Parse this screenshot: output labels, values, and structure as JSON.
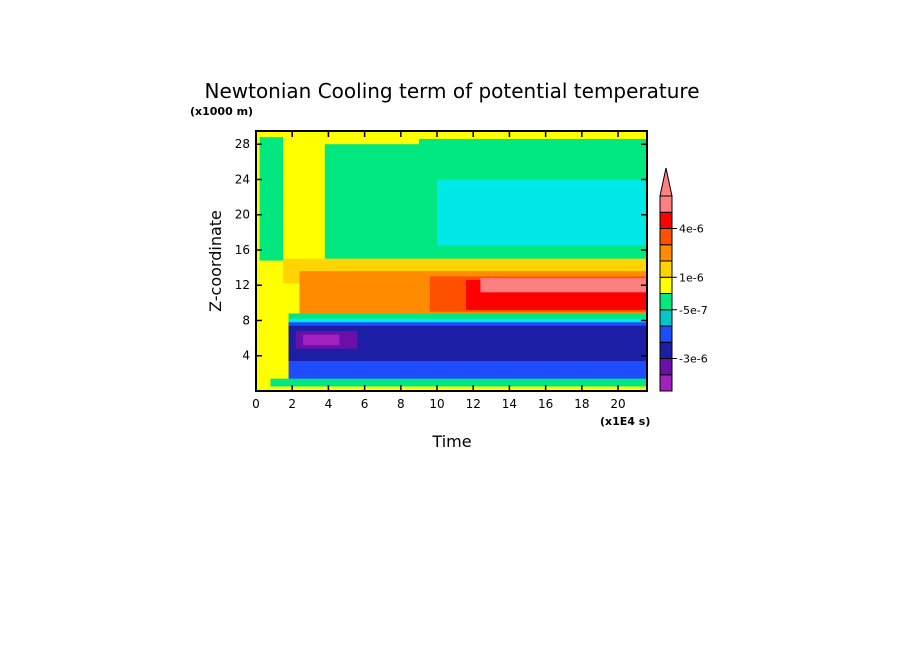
{
  "chart_data": {
    "type": "heatmap",
    "title": "Newtonian Cooling term of potential temperature",
    "xlabel": "Time",
    "ylabel": "Z-coordinate",
    "x_unit": "(x1E4 s)",
    "y_unit": "(x1000 m)",
    "xlim": [
      0,
      21.6
    ],
    "ylim": [
      0,
      29.5
    ],
    "x_ticks": [
      0,
      2,
      4,
      6,
      8,
      10,
      12,
      14,
      16,
      18,
      20
    ],
    "y_ticks": [
      4,
      8,
      12,
      16,
      20,
      24,
      28
    ],
    "x_tick_labels": [
      "0",
      "2",
      "4",
      "6",
      "8",
      "10",
      "12",
      "14",
      "16",
      "18",
      "20"
    ],
    "y_tick_labels": [
      "4",
      "8",
      "12",
      "16",
      "20",
      "24",
      "28"
    ],
    "colorbar": {
      "colors": [
        "#a020c0",
        "#6a0fa8",
        "#1c1fa6",
        "#1e4dff",
        "#00c8c8",
        "#00e87f",
        "#ffff00",
        "#ffd400",
        "#ff8c00",
        "#ff5000",
        "#ff0000",
        "#ff8080"
      ],
      "labels": [
        {
          "text": "-3e-6",
          "level": 2
        },
        {
          "text": "-5e-7",
          "level": 5
        },
        {
          "text": "1e-6",
          "level": 7
        },
        {
          "text": "4e-6",
          "level": 10
        }
      ],
      "extend": "max"
    },
    "regions": [
      {
        "color": "#ffff00",
        "x": [
          0,
          21.6
        ],
        "y": [
          0,
          29.5
        ]
      },
      {
        "color": "#00e87f",
        "x": [
          0.2,
          1.5
        ],
        "y": [
          14.8,
          28.8
        ]
      },
      {
        "color": "#00e87f",
        "x": [
          3.8,
          21.6
        ],
        "y": [
          15,
          28
        ]
      },
      {
        "color": "#00e87f",
        "x": [
          9,
          21.6
        ],
        "y": [
          26.5,
          28.6
        ]
      },
      {
        "color": "#00e8e8",
        "x": [
          10,
          21.6
        ],
        "y": [
          16.5,
          24
        ]
      },
      {
        "color": "#00e8e8",
        "x": [
          13,
          21.6
        ],
        "y": [
          18.8,
          21.8
        ]
      },
      {
        "color": "#ffd400",
        "x": [
          1.5,
          21.6
        ],
        "y": [
          12.2,
          15
        ]
      },
      {
        "color": "#ff8c00",
        "x": [
          2.4,
          21.6
        ],
        "y": [
          8.8,
          13.6
        ]
      },
      {
        "color": "#ff5000",
        "x": [
          9.6,
          21.6
        ],
        "y": [
          9,
          13
        ]
      },
      {
        "color": "#ff0000",
        "x": [
          11.6,
          21.6
        ],
        "y": [
          9.2,
          12.6
        ]
      },
      {
        "color": "#ff8080",
        "x": [
          12.4,
          21.6
        ],
        "y": [
          11.2,
          12.8
        ]
      },
      {
        "color": "#00e87f",
        "x": [
          1.8,
          21.6
        ],
        "y": [
          7,
          8.8
        ]
      },
      {
        "color": "#00e8e8",
        "x": [
          1.8,
          21.6
        ],
        "y": [
          6.6,
          8.2
        ]
      },
      {
        "color": "#1e4dff",
        "x": [
          1.8,
          21.6
        ],
        "y": [
          1,
          7.8
        ]
      },
      {
        "color": "#1c1fa6",
        "x": [
          1.8,
          21.6
        ],
        "y": [
          3.4,
          7.4
        ]
      },
      {
        "color": "#6a0fa8",
        "x": [
          2.2,
          5.6
        ],
        "y": [
          4.8,
          6.8
        ]
      },
      {
        "color": "#a020c0",
        "x": [
          2.6,
          4.6
        ],
        "y": [
          5.2,
          6.4
        ]
      },
      {
        "color": "#00e87f",
        "x": [
          0.8,
          21.6
        ],
        "y": [
          0.5,
          1.4
        ]
      },
      {
        "color": "#ffff00",
        "x": [
          0,
          21.6
        ],
        "y": [
          0,
          0.5
        ]
      }
    ]
  }
}
